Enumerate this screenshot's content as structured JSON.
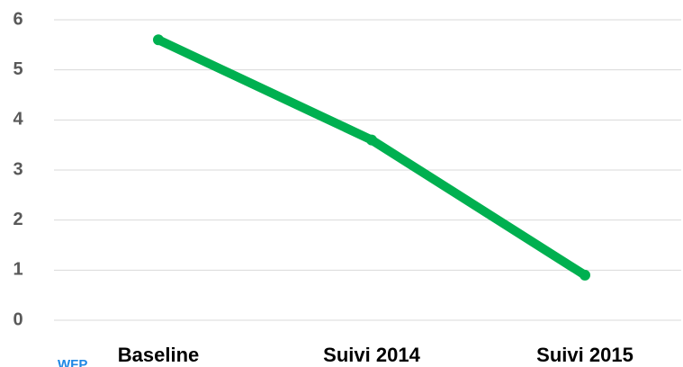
{
  "chart_data": {
    "type": "line",
    "categories": [
      "Baseline",
      "Suivi 2014",
      "Suivi 2015"
    ],
    "series": [
      {
        "color": "#00b050",
        "values": [
          5.6,
          3.6,
          0.9
        ]
      }
    ],
    "ylim": [
      0,
      6
    ],
    "yticks": [
      0,
      1,
      2,
      3,
      4,
      5,
      6
    ],
    "grid": true,
    "annotations": [
      "WFP"
    ]
  }
}
